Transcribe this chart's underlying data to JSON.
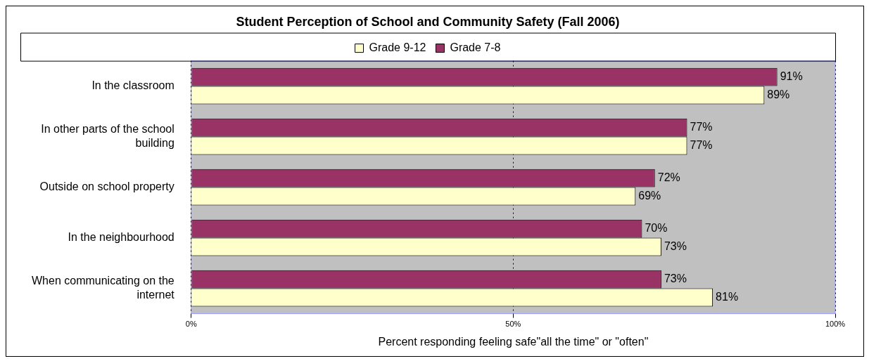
{
  "chart_data": {
    "type": "bar",
    "orientation": "horizontal",
    "title": "Student Perception of School and Community Safety (Fall 2006)",
    "xlabel": "Percent responding feeling safe\"all the time\" or \"often\"",
    "categories": [
      "In the classroom",
      "In other parts of the school building",
      "Outside on school property",
      "In the neighbourhood",
      "When communicating on the internet"
    ],
    "series": [
      {
        "name": "Grade 7-8",
        "color": "#993366",
        "values": [
          91,
          77,
          72,
          70,
          73
        ],
        "value_labels": [
          "91%",
          "77%",
          "72%",
          "70%",
          "73%"
        ]
      },
      {
        "name": "Grade 9-12",
        "color": "#ffffcc",
        "values": [
          89,
          77,
          69,
          73,
          81
        ],
        "value_labels": [
          "89%",
          "77%",
          "69%",
          "73%",
          "81%"
        ]
      }
    ],
    "xlim": [
      0,
      100
    ],
    "xticks": [
      {
        "value": 0,
        "label": "0%"
      },
      {
        "value": 50,
        "label": "50%"
      },
      {
        "value": 100,
        "label": "100%"
      }
    ],
    "grid": "x",
    "legend": "top"
  }
}
